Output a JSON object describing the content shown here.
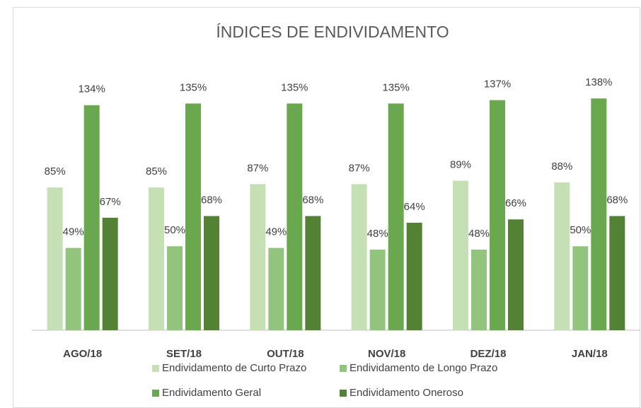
{
  "chart_data": {
    "type": "bar",
    "title": "ÍNDICES DE ENDIVIDAMENTO",
    "categories": [
      "AGO/18",
      "SET/18",
      "OUT/18",
      "NOV/18",
      "DEZ/18",
      "JAN/18"
    ],
    "ylim": [
      0,
      160
    ],
    "grid": false,
    "legend": "bottom",
    "series": [
      {
        "name": "Endividamento de Curto Prazo",
        "color": "#c5e0b4",
        "values": [
          85,
          85,
          87,
          87,
          89,
          88
        ],
        "value_labels": [
          "85%",
          "85%",
          "87%",
          "87%",
          "89%",
          "88%"
        ]
      },
      {
        "name": "Endividamento de Longo Prazo",
        "color": "#93c47d",
        "values": [
          49,
          50,
          49,
          48,
          48,
          50
        ],
        "value_labels": [
          "49%",
          "50%",
          "49%",
          "48%",
          "48%",
          "50%"
        ]
      },
      {
        "name": "Endividamento Geral",
        "color": "#6aa84f",
        "values": [
          134,
          135,
          135,
          135,
          137,
          138
        ],
        "value_labels": [
          "134%",
          "135%",
          "135%",
          "135%",
          "137%",
          "138%"
        ]
      },
      {
        "name": "Endividamento Oneroso",
        "color": "#548235",
        "values": [
          67,
          68,
          68,
          64,
          66,
          68
        ],
        "value_labels": [
          "67%",
          "68%",
          "68%",
          "64%",
          "66%",
          "68%"
        ]
      }
    ]
  }
}
